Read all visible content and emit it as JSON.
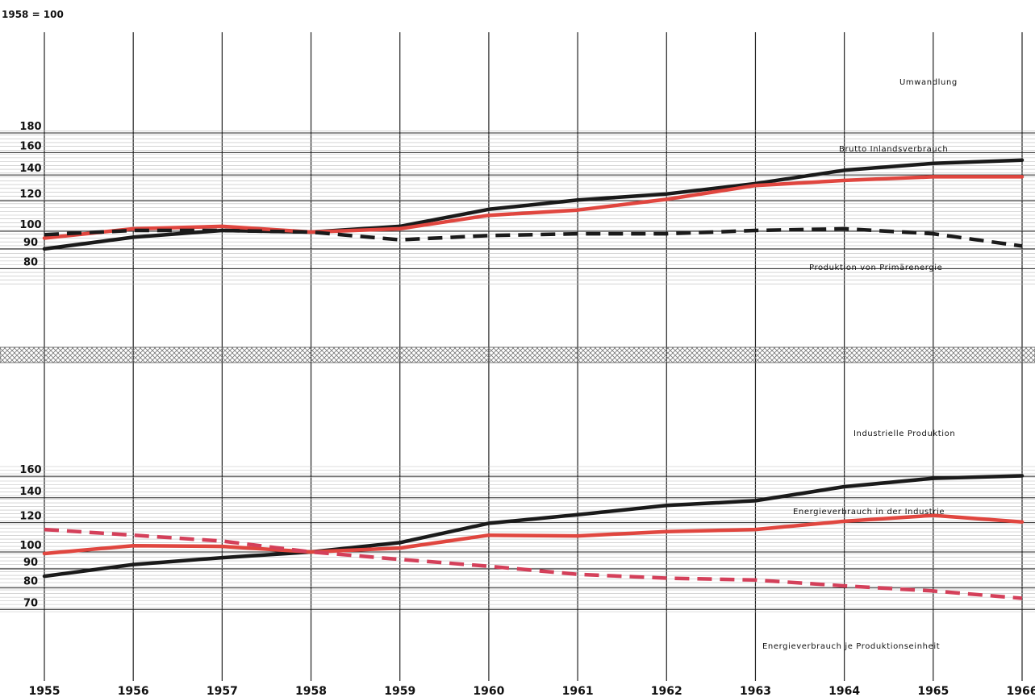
{
  "chart_data": [
    {
      "type": "line",
      "index_label": "1958 = 100",
      "x": [
        1955,
        1956,
        1957,
        1958,
        1959,
        1960,
        1961,
        1962,
        1963,
        1964,
        1965,
        1966
      ],
      "x_tick_labels": [
        "1955",
        "1956",
        "1957",
        "1958",
        "1959",
        "1960",
        "1961",
        "1962",
        "1963",
        "1964",
        "1965",
        "1966"
      ],
      "y_ticks": [
        80,
        90,
        100,
        120,
        140,
        160,
        180
      ],
      "y_scale": "log",
      "ylim": [
        73,
        182
      ],
      "grid": true,
      "series": [
        {
          "name": "Umwandlung",
          "color": "#1a1a1a",
          "dash": "solid",
          "values": [
            90,
            96.5,
            100.5,
            99.5,
            103,
            114,
            120.5,
            125,
            133,
            144,
            150,
            153
          ]
        },
        {
          "name": "Brutto Inlandsverbrauch",
          "color": "#e0463f",
          "dash": "solid",
          "values": [
            96,
            101.5,
            103,
            99.5,
            101.5,
            110,
            113.5,
            121,
            131.5,
            135.5,
            138.5,
            138.5
          ]
        },
        {
          "name": "Produktion von Primärenergie",
          "color": "#1a1a1a",
          "dash": "dashed",
          "values": [
            98,
            100.5,
            100.5,
            99.5,
            95,
            97.5,
            98.5,
            98.5,
            100.5,
            101.5,
            98.5,
            91.5
          ]
        }
      ]
    },
    {
      "type": "line",
      "x": [
        1955,
        1956,
        1957,
        1958,
        1959,
        1960,
        1961,
        1962,
        1963,
        1964,
        1965,
        1966
      ],
      "x_tick_labels": [
        "1955",
        "1956",
        "1957",
        "1958",
        "1959",
        "1960",
        "1961",
        "1962",
        "1963",
        "1964",
        "1965",
        "1966"
      ],
      "y_ticks": [
        70,
        80,
        90,
        100,
        120,
        140,
        160
      ],
      "y_scale": "log",
      "ylim": [
        69,
        170
      ],
      "grid": true,
      "series": [
        {
          "name": "Industrielle Produktion",
          "color": "#1a1a1a",
          "dash": "solid",
          "values": [
            86,
            92.5,
            96.5,
            100,
            106,
            119.5,
            126,
            133.5,
            137.5,
            150,
            158,
            160.5
          ]
        },
        {
          "name": "Energieverbrauch in der Industrie",
          "color": "#e0463f",
          "dash": "solid",
          "values": [
            99,
            104,
            103.5,
            100,
            102.5,
            111,
            110.5,
            113.5,
            115,
            121,
            125.5,
            120.5
          ]
        },
        {
          "name": "Energieverbrauch je Produktionseinheit",
          "color": "#d4405a",
          "dash": "dashed",
          "values": [
            115,
            111,
            107,
            100,
            95.5,
            91.5,
            87,
            85,
            84,
            81,
            78.5,
            75
          ]
        }
      ]
    }
  ]
}
